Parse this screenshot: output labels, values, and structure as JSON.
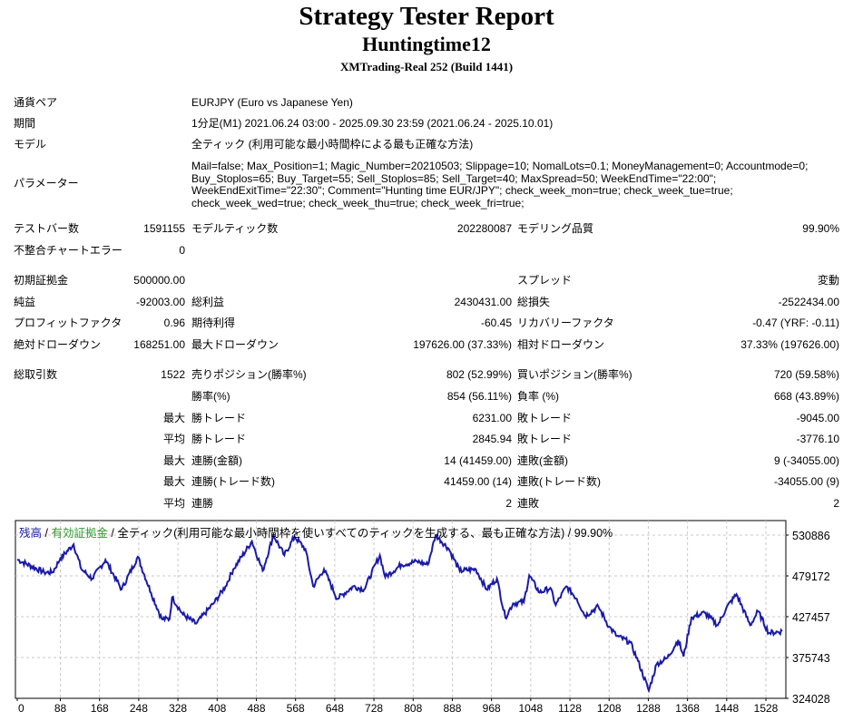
{
  "header": {
    "title": "Strategy Tester Report",
    "ea_name": "Huntingtime12",
    "server": "XMTrading-Real 252 (Build 1441)"
  },
  "info": {
    "symbol_label": "通貨ペア",
    "symbol": "EURJPY (Euro vs Japanese Yen)",
    "period_label": "期間",
    "period": "1分足(M1) 2021.06.24 03:00 - 2025.09.30 23:59 (2021.06.24 - 2025.10.01)",
    "model_label": "モデル",
    "model": "全ティック (利用可能な最小時間枠による最も正確な方法)",
    "params_label": "パラメーター",
    "params": "Mail=false; Max_Position=1; Magic_Number=20210503; Slippage=10; NomalLots=0.1; MoneyManagement=0; Accountmode=0; Buy_Stoplos=65; Buy_Target=55; Sell_Stoplos=85; Sell_Target=40; MaxSpread=50; WeekEndTime=\"22:00\"; WeekEndExitTime=\"22:30\"; Comment=\"Hunting time EUR/JPY\"; check_week_mon=true; check_week_tue=true; check_week_wed=true; check_week_thu=true; check_week_fri=true;"
  },
  "stats": [
    {
      "top": "R1",
      "l1": "テストバー数",
      "v1": "1591155",
      "l2": "モデルティック数",
      "v2": "202280087",
      "l3": "モデリング品質",
      "v3": "99.90%"
    },
    {
      "top": "R2",
      "l1": "不整合チャートエラー",
      "v1": "0",
      "l2": "",
      "v2": "",
      "l3": "",
      "v3": ""
    },
    {
      "top": "R3",
      "l1": "初期証拠金",
      "v1": "500000.00",
      "l2": "",
      "v2": "",
      "l3": "スプレッド",
      "v3": "変動"
    },
    {
      "top": "R4",
      "l1": "純益",
      "v1": "-92003.00",
      "l2": "総利益",
      "v2": "2430431.00",
      "l3": "総損失",
      "v3": "-2522434.00"
    },
    {
      "top": "R5",
      "l1": "プロフィットファクタ",
      "v1": "0.96",
      "l2": "期待利得",
      "v2": "-60.45",
      "l3": "リカバリーファクタ",
      "v3": "-0.47 (YRF: -0.11)"
    },
    {
      "top": "R6",
      "l1": "絶対ドローダウン",
      "v1": "168251.00",
      "l2": "最大ドローダウン",
      "v2": "197626.00 (37.33%)",
      "l3": "相対ドローダウン",
      "v3": "37.33% (197626.00)"
    },
    {
      "top": "R7",
      "l1": "総取引数",
      "v1": "1522",
      "l2": "売りポジション(勝率%)",
      "v2": "802 (52.99%)",
      "l3": "買いポジション(勝率%)",
      "v3": "720 (59.58%)"
    },
    {
      "top": "R8",
      "l1": "",
      "v1": "",
      "l2": "勝率(%)",
      "v2": "854 (56.11%)",
      "l3": "負率 (%)",
      "v3": "668 (43.89%)"
    },
    {
      "top": "R9",
      "l1": "",
      "v1": "最大",
      "l2": "勝トレード",
      "v2": "6231.00",
      "l3": "敗トレード",
      "v3": "-9045.00"
    },
    {
      "top": "R10",
      "l1": "",
      "v1": "平均",
      "l2": "勝トレード",
      "v2": "2845.94",
      "l3": "敗トレード",
      "v3": "-3776.10"
    },
    {
      "top": "R11",
      "l1": "",
      "v1": "最大",
      "l2": "連勝(金額)",
      "v2": "14 (41459.00)",
      "l3": "連敗(金額)",
      "v3": "9 (-34055.00)"
    },
    {
      "top": "R12",
      "l1": "",
      "v1": "最大",
      "l2": "連勝(トレード数)",
      "v2": "41459.00 (14)",
      "l3": "連敗(トレード数)",
      "v3": "-34055.00 (9)"
    },
    {
      "top": "R13",
      "l1": "",
      "v1": "平均",
      "l2": "連勝",
      "v2": "2",
      "l3": "連敗",
      "v3": "2"
    }
  ],
  "chart_data": {
    "type": "line",
    "legend": {
      "balance": "残高",
      "sep1": " / ",
      "equity": "有効証拠金",
      "rest": " / 全ティック(利用可能な最小時間枠を使いすべてのティックを生成する、最も正確な方法) / 99.90%"
    },
    "colors": {
      "balance": "#1a1aa8",
      "equity": "#2e9a2e",
      "grid": "#c8c8c8"
    },
    "xlim": [
      0,
      1565
    ],
    "ylim": [
      324028,
      530886
    ],
    "xticks": [
      0,
      88,
      168,
      248,
      328,
      408,
      488,
      568,
      648,
      728,
      808,
      888,
      968,
      1048,
      1128,
      1208,
      1288,
      1368,
      1448,
      1528
    ],
    "yticks": [
      530886,
      479172,
      427457,
      375743,
      324028
    ],
    "series": [
      {
        "name": "残高",
        "points": [
          [
            0,
            500000
          ],
          [
            55,
            483600
          ],
          [
            72,
            483600
          ],
          [
            88,
            501300
          ],
          [
            115,
            519100
          ],
          [
            131,
            487600
          ],
          [
            153,
            475700
          ],
          [
            180,
            499400
          ],
          [
            213,
            462000
          ],
          [
            246,
            503300
          ],
          [
            273,
            458000
          ],
          [
            295,
            424500
          ],
          [
            311,
            424500
          ],
          [
            316,
            452100
          ],
          [
            338,
            430400
          ],
          [
            365,
            418600
          ],
          [
            403,
            446200
          ],
          [
            425,
            465900
          ],
          [
            441,
            487600
          ],
          [
            479,
            523000
          ],
          [
            501,
            485600
          ],
          [
            523,
            530900
          ],
          [
            545,
            505300
          ],
          [
            566,
            528900
          ],
          [
            588,
            513200
          ],
          [
            604,
            465900
          ],
          [
            626,
            487600
          ],
          [
            653,
            450100
          ],
          [
            686,
            465900
          ],
          [
            708,
            462000
          ],
          [
            740,
            505300
          ],
          [
            751,
            477700
          ],
          [
            784,
            493500
          ],
          [
            816,
            497400
          ],
          [
            838,
            493500
          ],
          [
            854,
            530900
          ],
          [
            881,
            513200
          ],
          [
            903,
            485600
          ],
          [
            936,
            487600
          ],
          [
            958,
            462000
          ],
          [
            979,
            475700
          ],
          [
            996,
            426500
          ],
          [
            1012,
            444200
          ],
          [
            1034,
            446200
          ],
          [
            1045,
            479700
          ],
          [
            1066,
            458000
          ],
          [
            1088,
            464000
          ],
          [
            1099,
            442200
          ],
          [
            1121,
            465900
          ],
          [
            1142,
            450100
          ],
          [
            1159,
            428500
          ],
          [
            1186,
            440300
          ],
          [
            1208,
            414700
          ],
          [
            1224,
            402900
          ],
          [
            1251,
            395000
          ],
          [
            1267,
            371300
          ],
          [
            1289,
            333900
          ],
          [
            1305,
            367400
          ],
          [
            1327,
            375300
          ],
          [
            1349,
            398000
          ],
          [
            1360,
            377000
          ],
          [
            1376,
            426500
          ],
          [
            1403,
            432400
          ],
          [
            1430,
            416600
          ],
          [
            1447,
            438300
          ],
          [
            1468,
            456000
          ],
          [
            1496,
            416600
          ],
          [
            1512,
            434400
          ],
          [
            1534,
            406800
          ],
          [
            1561,
            408800
          ]
        ]
      }
    ]
  }
}
